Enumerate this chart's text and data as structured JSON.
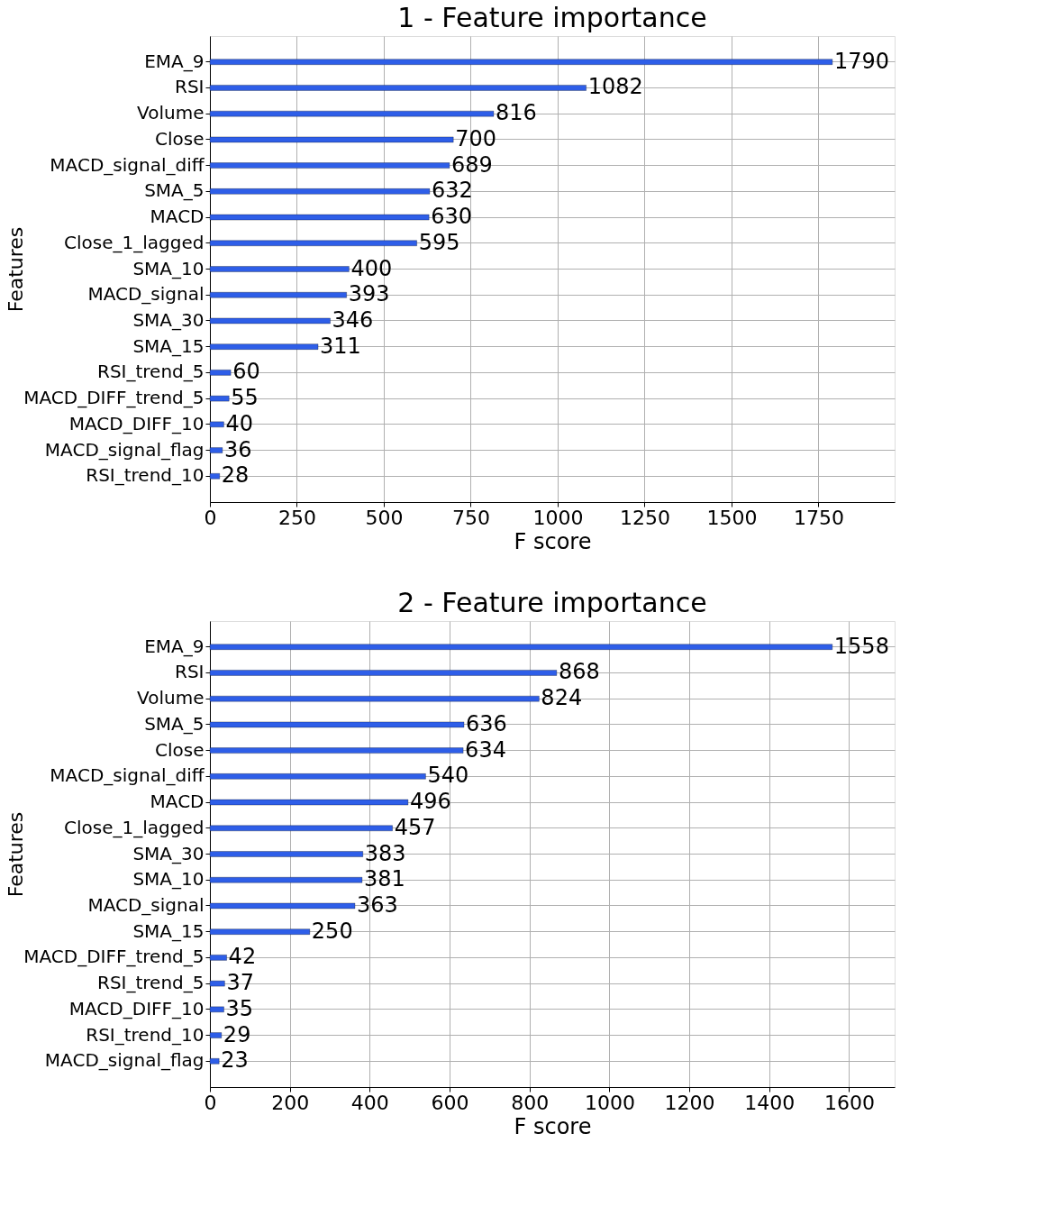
{
  "chart_data": [
    {
      "type": "bar",
      "orientation": "horizontal",
      "title": "1 - Feature importance",
      "xlabel": "F score",
      "ylabel": "Features",
      "categories": [
        "EMA_9",
        "RSI",
        "Volume",
        "Close",
        "MACD_signal_diff",
        "SMA_5",
        "MACD",
        "Close_1_lagged",
        "SMA_10",
        "MACD_signal",
        "SMA_30",
        "SMA_15",
        "RSI_trend_5",
        "MACD_DIFF_trend_5",
        "MACD_DIFF_10",
        "MACD_signal_flag",
        "RSI_trend_10"
      ],
      "values": [
        1790,
        1082,
        816,
        700,
        689,
        632,
        630,
        595,
        400,
        393,
        346,
        311,
        60,
        55,
        40,
        36,
        28
      ],
      "color": "#2e5ee8",
      "xlim": [
        0,
        1969
      ],
      "xticks": [
        0,
        250,
        500,
        750,
        1000,
        1250,
        1500,
        1750
      ],
      "grid": true,
      "data_labels": true
    },
    {
      "type": "bar",
      "orientation": "horizontal",
      "title": "2 - Feature importance",
      "xlabel": "F score",
      "ylabel": "Features",
      "categories": [
        "EMA_9",
        "RSI",
        "Volume",
        "SMA_5",
        "Close",
        "MACD_signal_diff",
        "MACD",
        "Close_1_lagged",
        "SMA_30",
        "SMA_10",
        "MACD_signal",
        "SMA_15",
        "MACD_DIFF_trend_5",
        "RSI_trend_5",
        "MACD_DIFF_10",
        "RSI_trend_10",
        "MACD_signal_flag"
      ],
      "values": [
        1558,
        868,
        824,
        636,
        634,
        540,
        496,
        457,
        383,
        381,
        363,
        250,
        42,
        37,
        35,
        29,
        23
      ],
      "color": "#2e5ee8",
      "xlim": [
        0,
        1714
      ],
      "xticks": [
        0,
        200,
        400,
        600,
        800,
        1000,
        1200,
        1400,
        1600
      ],
      "grid": true,
      "data_labels": true
    }
  ]
}
